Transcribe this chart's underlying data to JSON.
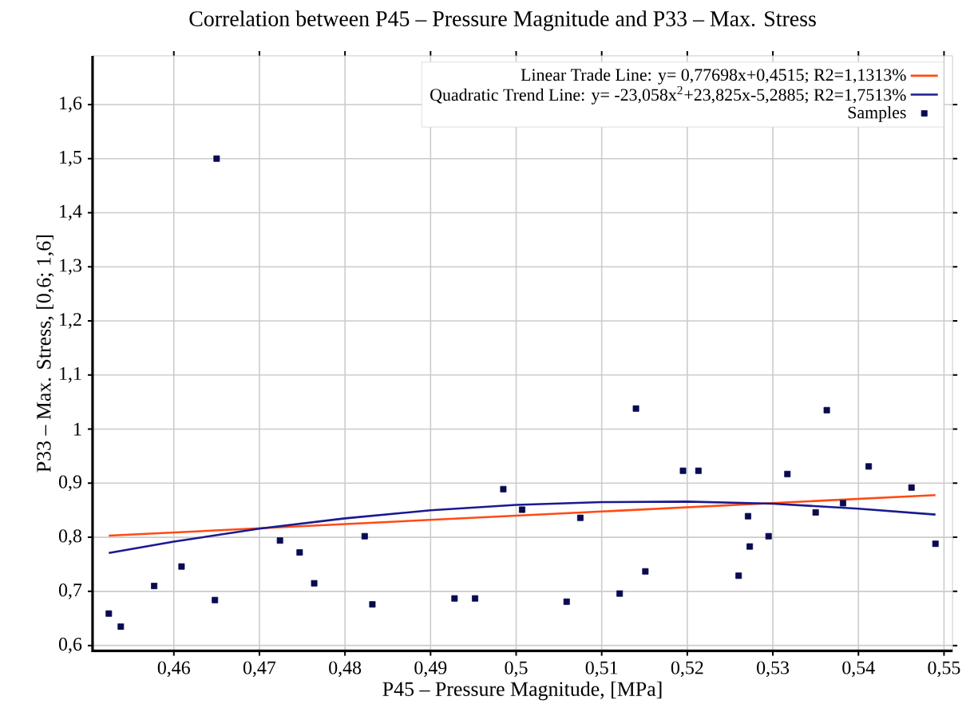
{
  "chart_data": {
    "type": "scatter",
    "title": "Correlation between P45 – Pressure Magnitude and P33 – Max. Stress",
    "xlabel": "P45 – Pressure Magnitude, [MPa]",
    "ylabel": "P33 – Max. Stress, [0,6; 1,6]",
    "xlim": [
      0.4505,
      0.551
    ],
    "ylim": [
      0.59,
      1.69
    ],
    "xticks": [
      {
        "value": 0.46,
        "label": "0,46"
      },
      {
        "value": 0.47,
        "label": "0,47"
      },
      {
        "value": 0.48,
        "label": "0,48"
      },
      {
        "value": 0.49,
        "label": "0,49"
      },
      {
        "value": 0.5,
        "label": "0,5"
      },
      {
        "value": 0.51,
        "label": "0,51"
      },
      {
        "value": 0.52,
        "label": "0,52"
      },
      {
        "value": 0.53,
        "label": "0,53"
      },
      {
        "value": 0.54,
        "label": "0,54"
      },
      {
        "value": 0.55,
        "label": "0,55"
      }
    ],
    "yticks": [
      {
        "value": 0.6,
        "label": "0,6"
      },
      {
        "value": 0.7,
        "label": "0,7"
      },
      {
        "value": 0.8,
        "label": "0,8"
      },
      {
        "value": 0.9,
        "label": "0,9"
      },
      1,
      {
        "value": 1.1,
        "label": "1,1"
      },
      {
        "value": 1.2,
        "label": "1,2"
      },
      {
        "value": 1.3,
        "label": "1,3"
      },
      {
        "value": 1.4,
        "label": "1,4"
      },
      {
        "value": 1.5,
        "label": "1,5"
      },
      {
        "value": 1.6,
        "label": "1,6"
      }
    ],
    "grid": true,
    "legend": "top right",
    "series": [
      {
        "name": "Linear Trade Line: y= 0,77698x+0,4515; R2=1,1313%",
        "type": "line",
        "color": "#ff4a14",
        "marker": "none",
        "line_style": "solid",
        "x": [
          0.4524,
          0.549
        ],
        "values": [
          0.803,
          0.878
        ]
      },
      {
        "name": "Quadratic Trend Line: y= -23,058x$^{2}$+23,825x-5,2885; R2=1,7513%",
        "type": "line",
        "color": "#1a1a90",
        "marker": "none",
        "line_style": "solid",
        "x": [
          0.4524,
          0.46,
          0.47,
          0.48,
          0.49,
          0.5,
          0.51,
          0.52,
          0.53,
          0.54,
          0.549
        ],
        "values": [
          0.771,
          0.792,
          0.816,
          0.835,
          0.85,
          0.86,
          0.865,
          0.866,
          0.862,
          0.853,
          0.842
        ]
      },
      {
        "name": "Samples",
        "color": "#0a0a50",
        "marker": "square",
        "x": [
          0.4524,
          0.4538,
          0.4577,
          0.4609,
          0.465,
          0.4648,
          0.4724,
          0.4747,
          0.4764,
          0.4823,
          0.4832,
          0.4928,
          0.4952,
          0.4985,
          0.5007,
          0.5059,
          0.5075,
          0.5121,
          0.514,
          0.5151,
          0.5195,
          0.5213,
          0.526,
          0.5271,
          0.5273,
          0.5295,
          0.5317,
          0.535,
          0.5363,
          0.5382,
          0.5412,
          0.5462,
          0.549
        ],
        "values": [
          0.659,
          0.635,
          0.71,
          0.746,
          1.5,
          0.684,
          0.794,
          0.772,
          0.715,
          0.802,
          0.676,
          0.687,
          0.687,
          0.889,
          0.851,
          0.681,
          0.836,
          0.696,
          1.038,
          0.737,
          0.923,
          0.923,
          0.729,
          0.839,
          0.783,
          0.802,
          0.917,
          0.846,
          1.035,
          0.863,
          0.931,
          0.892,
          0.788
        ]
      }
    ]
  }
}
